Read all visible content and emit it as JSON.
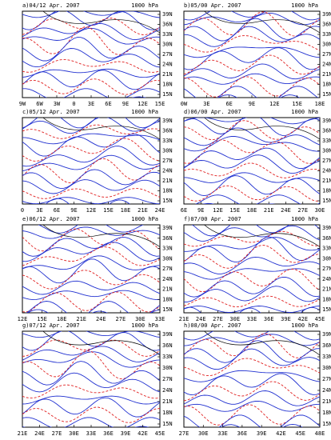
{
  "panels": [
    {
      "title": "a)04/12 Apr. 2007",
      "level": "1000 hPa",
      "xlabels": [
        "9W",
        "6W",
        "3W",
        "0",
        "3E",
        "6E",
        "9E",
        "12E",
        "15E"
      ],
      "ylabels": [
        "39N",
        "36N",
        "33N",
        "30N",
        "27N",
        "24N",
        "21N",
        "18N",
        "15N"
      ]
    },
    {
      "title": "b)05/00 Apr. 2007",
      "level": "1000 hPa",
      "xlabels": [
        "0W",
        "3E",
        "6E",
        "9E",
        "12E",
        "15E",
        "18E"
      ],
      "ylabels": [
        "39N",
        "36N",
        "33N",
        "30N",
        "27N",
        "24N",
        "21N",
        "18N",
        "15N"
      ]
    },
    {
      "title": "c)05/12 Apr. 2007",
      "level": "1000 hPa",
      "xlabels": [
        "0",
        "3E",
        "6E",
        "9E",
        "12E",
        "15E",
        "18E",
        "21E",
        "24E"
      ],
      "ylabels": [
        "39N",
        "36N",
        "33N",
        "30N",
        "27N",
        "24N",
        "21N",
        "18N",
        "15N"
      ]
    },
    {
      "title": "d)06/00 Apr. 2007",
      "level": "1000 hPa",
      "xlabels": [
        "6E",
        "9E",
        "12E",
        "15E",
        "18E",
        "21E",
        "24E",
        "27E",
        "30E"
      ],
      "ylabels": [
        "39N",
        "36N",
        "33N",
        "30N",
        "27N",
        "24N",
        "21N",
        "18N",
        "15N"
      ]
    },
    {
      "title": "e)06/12 Apr. 2007",
      "level": "1000 hPa",
      "xlabels": [
        "12E",
        "15E",
        "18E",
        "21E",
        "24E",
        "27E",
        "30E",
        "33E"
      ],
      "ylabels": [
        "39N",
        "36N",
        "33N",
        "30N",
        "27N",
        "24N",
        "21N",
        "18N",
        "15N"
      ]
    },
    {
      "title": "f)07/00 Apr. 2007",
      "level": "1000 hPa",
      "xlabels": [
        "21E",
        "24E",
        "27E",
        "30E",
        "33E",
        "36E",
        "39E",
        "42E",
        "45E"
      ],
      "ylabels": [
        "39N",
        "36N",
        "33N",
        "30N",
        "27N",
        "24N",
        "21N",
        "18N",
        "15N"
      ]
    },
    {
      "title": "g)07/12 Apr. 2007",
      "level": "1000 hPa",
      "xlabels": [
        "21E",
        "24E",
        "27E",
        "30E",
        "33E",
        "36E",
        "39E",
        "42E",
        "45E"
      ],
      "ylabels": [
        "39N",
        "36N",
        "33N",
        "30N",
        "27N",
        "24N",
        "21N",
        "18N",
        "15N"
      ]
    },
    {
      "title": "h)08/00 Apr. 2007",
      "level": "1000 hPa",
      "xlabels": [
        "27E",
        "30E",
        "33E",
        "36E",
        "39E",
        "42E",
        "45E",
        "48E"
      ],
      "ylabels": [
        "39N",
        "36N",
        "33N",
        "30N",
        "27N",
        "24N",
        "21N",
        "18N",
        "15N"
      ]
    }
  ]
}
